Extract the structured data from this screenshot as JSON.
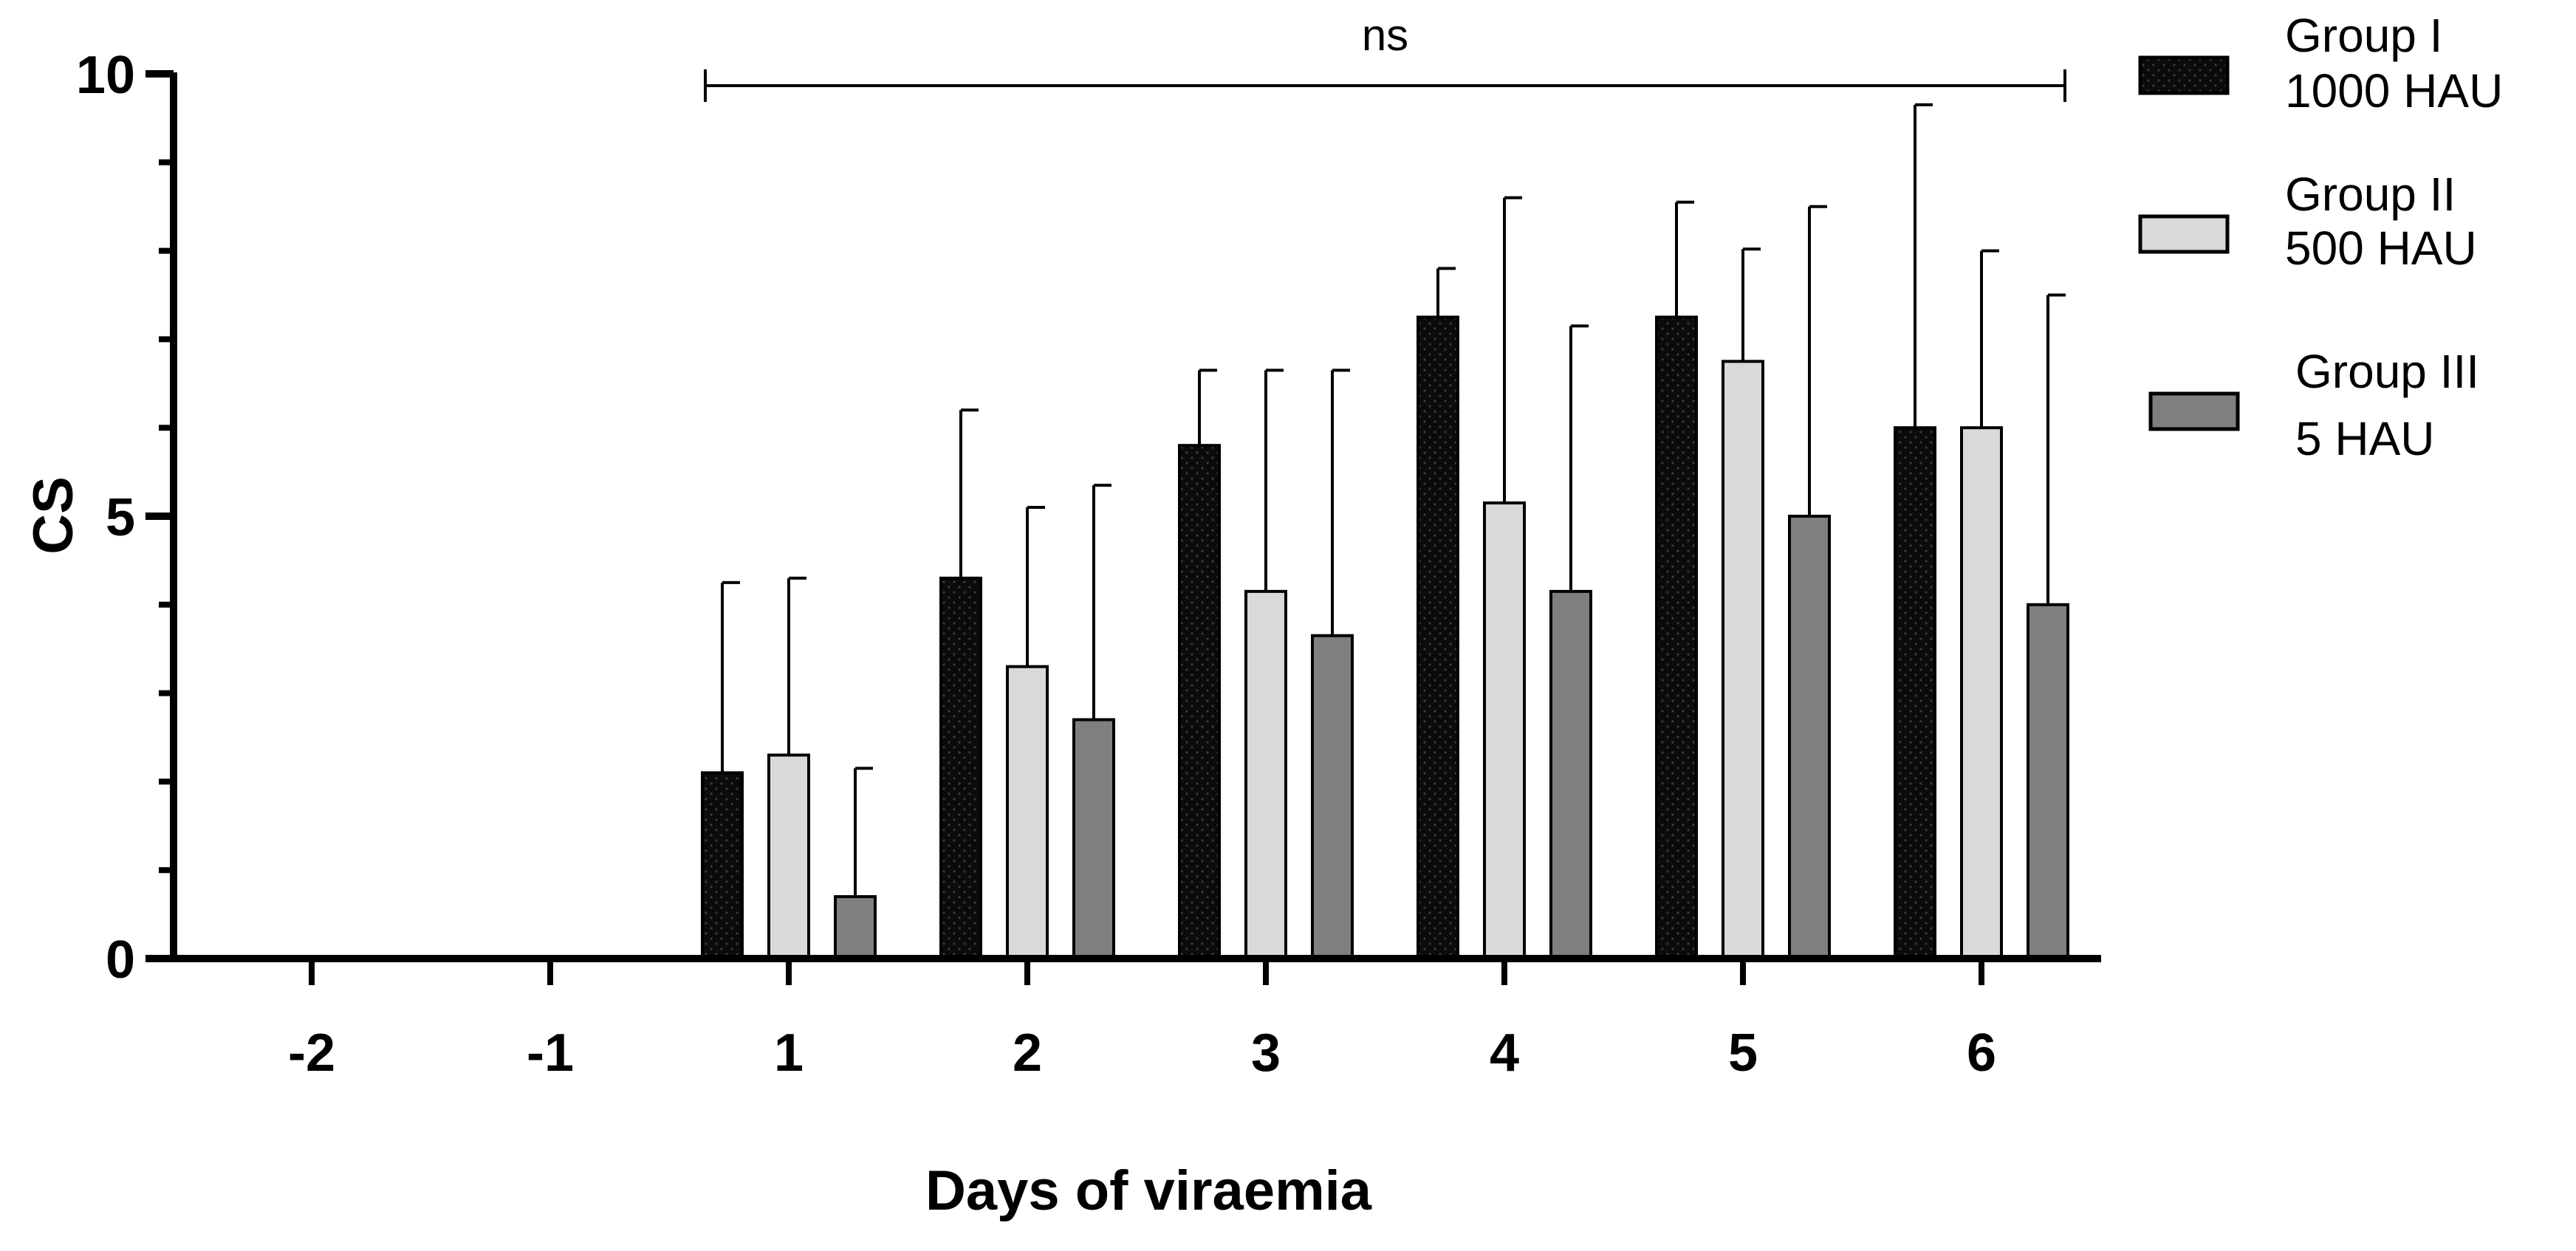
{
  "chart_data": {
    "type": "bar",
    "title": "",
    "xlabel": "Days of viraemia",
    "ylabel": "CS",
    "ylim": [
      0,
      10
    ],
    "yticks_major": [
      0,
      5,
      10
    ],
    "yticks_minor_step": 1,
    "categories": [
      "-2",
      "-1",
      "1",
      "2",
      "3",
      "4",
      "5",
      "6"
    ],
    "series": [
      {
        "name": "Group I\n1000 HAU",
        "label_line1": "Group I",
        "label_line2": "1000 HAU",
        "color": "#0b0b0b",
        "values": [
          0,
          0,
          2.1,
          4.3,
          5.8,
          7.25,
          7.25,
          6.0
        ],
        "errors": [
          0,
          0,
          2.15,
          1.9,
          0.85,
          0.55,
          1.3,
          3.65
        ]
      },
      {
        "name": "Group II\n500 HAU",
        "label_line1": "Group II",
        "label_line2": "500 HAU",
        "color": "#d9d9d9",
        "values": [
          0,
          0,
          2.3,
          3.3,
          4.15,
          5.15,
          6.75,
          6.0
        ],
        "errors": [
          0,
          0,
          2.0,
          1.8,
          2.5,
          3.45,
          1.27,
          2.0
        ]
      },
      {
        "name": "Group III\n5 HAU",
        "label_line1": "Group III",
        "label_line2": "5 HAU",
        "color": "#7f7f7f",
        "values": [
          0,
          0,
          0.7,
          2.7,
          3.65,
          4.15,
          5.0,
          4.0
        ],
        "errors": [
          0,
          0,
          1.45,
          2.65,
          3.0,
          3.0,
          3.5,
          3.5
        ]
      }
    ],
    "significance": {
      "label": "ns",
      "from_category": "1",
      "to_category": "6"
    },
    "legend_position": "right"
  }
}
